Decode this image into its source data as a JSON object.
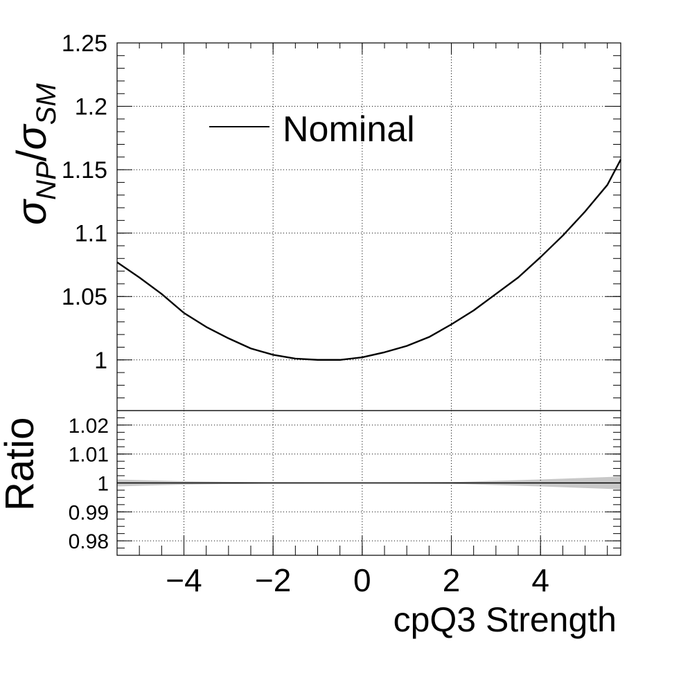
{
  "chart_data": [
    {
      "type": "line",
      "panel": "main",
      "ylabel_parts": {
        "sigma1": "σ",
        "sub1": "NP",
        "slash": "/",
        "sigma2": "σ",
        "sub2": "SM"
      },
      "xlim": [
        -5.5,
        5.8
      ],
      "ylim": [
        0.96,
        1.25
      ],
      "yticks": [
        1,
        1.05,
        1.1,
        1.15,
        1.2,
        1.25
      ],
      "ytick_labels": [
        "1",
        "1.05",
        "1.1",
        "1.15",
        "1.2",
        "1.25"
      ],
      "grid": true,
      "legend_placement": "top-left",
      "series": [
        {
          "name": "Nominal",
          "x": [
            -5.5,
            -5,
            -4.5,
            -4,
            -3.5,
            -3,
            -2.5,
            -2,
            -1.5,
            -1,
            -0.5,
            0,
            0.5,
            1,
            1.5,
            2,
            2.5,
            3,
            3.5,
            4,
            4.5,
            5,
            5.5,
            5.8
          ],
          "y": [
            1.077,
            1.065,
            1.052,
            1.037,
            1.026,
            1.017,
            1.009,
            1.004,
            1.001,
            1.0,
            1.0,
            1.002,
            1.006,
            1.011,
            1.018,
            1.028,
            1.039,
            1.052,
            1.065,
            1.081,
            1.098,
            1.117,
            1.138,
            1.158
          ]
        }
      ]
    },
    {
      "type": "line",
      "panel": "ratio",
      "ylabel": "Ratio",
      "xlabel": "cpQ3 Strength",
      "xlim": [
        -5.5,
        5.8
      ],
      "ylim": [
        0.975,
        1.025
      ],
      "yticks": [
        0.98,
        0.99,
        1,
        1.01,
        1.02
      ],
      "ytick_labels": [
        "0.98",
        "0.99",
        "1",
        "1.01",
        "1.02"
      ],
      "xticks": [
        -4,
        -2,
        0,
        2,
        4
      ],
      "xtick_labels": [
        "−4",
        "−2",
        "0",
        "2",
        "4"
      ],
      "grid": true,
      "series": [
        {
          "x": [
            -5.5,
            5.8
          ],
          "y": [
            1.0,
            1.0
          ]
        }
      ],
      "uncertainty_band": {
        "x": [
          -5.5,
          -4,
          -2,
          0,
          2,
          4,
          5.8
        ],
        "half_width": [
          0.0012,
          0.0006,
          0.0002,
          0.0001,
          0.0003,
          0.0012,
          0.0022
        ]
      }
    }
  ]
}
